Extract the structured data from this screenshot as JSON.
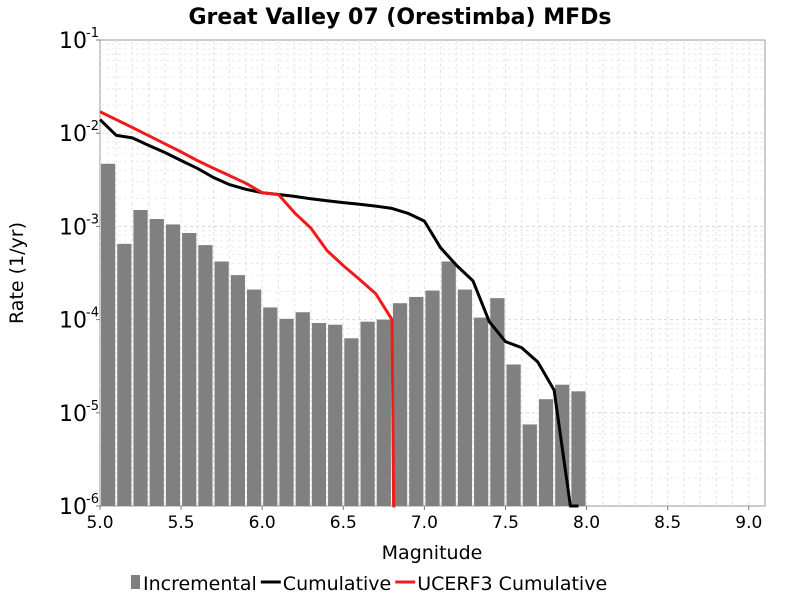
{
  "chart_data": {
    "type": "bar",
    "title": "Great Valley 07 (Orestimba) MFDs",
    "xlabel": "Magnitude",
    "ylabel": "Rate (1/yr)",
    "xlim": [
      5.0,
      9.1
    ],
    "ylim": [
      1e-06,
      0.1
    ],
    "y_scale": "log",
    "grid": true,
    "legend_position": "bottom",
    "x_ticks": [
      "5.0",
      "5.5",
      "6.0",
      "6.5",
      "7.0",
      "7.5",
      "8.0",
      "8.5",
      "9.0"
    ],
    "y_tick_base": "10",
    "y_ticks": [
      {
        "value": 0.1,
        "exp": "-1"
      },
      {
        "value": 0.01,
        "exp": "-2"
      },
      {
        "value": 0.001,
        "exp": "-3"
      },
      {
        "value": 0.0001,
        "exp": "-4"
      },
      {
        "value": 1e-05,
        "exp": "-5"
      },
      {
        "value": 1e-06,
        "exp": "-6"
      }
    ],
    "series": [
      {
        "name": "Incremental",
        "kind": "bar",
        "color": "#808080",
        "x": [
          5.0,
          5.1,
          5.2,
          5.3,
          5.4,
          5.5,
          5.6,
          5.7,
          5.8,
          5.9,
          6.0,
          6.1,
          6.2,
          6.3,
          6.4,
          6.5,
          6.6,
          6.7,
          6.8,
          6.9,
          7.0,
          7.1,
          7.2,
          7.3,
          7.4,
          7.5,
          7.6,
          7.7,
          7.8,
          7.9
        ],
        "values": [
          0.0047,
          0.00065,
          0.0015,
          0.0012,
          0.00105,
          0.00085,
          0.00063,
          0.00042,
          0.0003,
          0.00021,
          0.000135,
          0.000102,
          0.00012,
          9.2e-05,
          8.8e-05,
          6.3e-05,
          9.5e-05,
          0.0001,
          0.00015,
          0.000175,
          0.000205,
          0.00042,
          0.00021,
          0.000105,
          0.00017,
          3.3e-05,
          7.5e-06,
          1.4e-05,
          2e-05,
          1.7e-05
        ]
      },
      {
        "name": "Cumulative",
        "kind": "line",
        "color": "#000000",
        "x": [
          5.0,
          5.1,
          5.2,
          5.3,
          5.4,
          5.5,
          5.6,
          5.7,
          5.8,
          5.9,
          6.0,
          6.1,
          6.2,
          6.3,
          6.4,
          6.5,
          6.6,
          6.7,
          6.8,
          6.9,
          7.0,
          7.1,
          7.2,
          7.3,
          7.4,
          7.5,
          7.6,
          7.7,
          7.8,
          7.9,
          7.95
        ],
        "values": [
          0.014,
          0.0095,
          0.0089,
          0.0074,
          0.0062,
          0.0051,
          0.0042,
          0.00335,
          0.0028,
          0.0025,
          0.0023,
          0.0022,
          0.0021,
          0.00198,
          0.00188,
          0.0018,
          0.00173,
          0.00165,
          0.00156,
          0.00138,
          0.00114,
          0.00059,
          0.00038,
          0.00026,
          9.5e-05,
          5.8e-05,
          5e-05,
          3.5e-05,
          1.75e-05,
          1e-06,
          1e-06
        ]
      },
      {
        "name": "UCERF3 Cumulative",
        "kind": "line",
        "color": "#ee1c1c",
        "x": [
          5.0,
          5.1,
          5.2,
          5.3,
          5.4,
          5.5,
          5.6,
          5.7,
          5.8,
          5.9,
          6.0,
          6.1,
          6.2,
          6.3,
          6.4,
          6.5,
          6.6,
          6.7,
          6.8,
          6.81,
          6.82
        ],
        "values": [
          0.017,
          0.014,
          0.0115,
          0.0094,
          0.0077,
          0.0063,
          0.0051,
          0.0042,
          0.0035,
          0.0029,
          0.0023,
          0.0022,
          0.0014,
          0.00096,
          0.00055,
          0.00038,
          0.00027,
          0.00019,
          0.0001,
          1e-06,
          1e-06
        ]
      }
    ]
  }
}
